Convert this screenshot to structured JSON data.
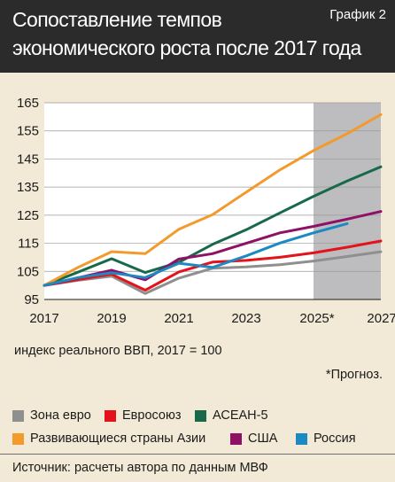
{
  "header": {
    "title_line1": "Сопоставление темпов",
    "title_line2": "экономического роста после 2017 года",
    "badge": "График 2"
  },
  "chart_data": {
    "type": "line",
    "xlim": [
      2017,
      2027
    ],
    "ylim": [
      95,
      165
    ],
    "yticks": [
      95,
      105,
      115,
      125,
      135,
      145,
      155,
      165
    ],
    "xticks": [
      "2017",
      "2019",
      "2021",
      "2023",
      "2025*",
      "2027*"
    ],
    "xtick_values": [
      2017,
      2019,
      2021,
      2023,
      2025,
      2027
    ],
    "forecast_from": 2025,
    "grid": true,
    "series": [
      {
        "name": "Зона евро",
        "color": "#8f8f8f",
        "x": [
          2017,
          2018,
          2019,
          2020,
          2021,
          2022,
          2023,
          2024,
          2025,
          2026,
          2027
        ],
        "y": [
          100,
          101.8,
          103.3,
          97.1,
          102.6,
          106.1,
          106.6,
          107.4,
          108.7,
          110.3,
          112.0
        ]
      },
      {
        "name": "Евросоюз",
        "color": "#e3121b",
        "x": [
          2017,
          2018,
          2019,
          2020,
          2021,
          2022,
          2023,
          2024,
          2025,
          2026,
          2027
        ],
        "y": [
          100,
          102.1,
          104.0,
          98.3,
          104.8,
          108.3,
          108.9,
          110.0,
          111.6,
          113.6,
          115.8
        ]
      },
      {
        "name": "АСЕАН-5",
        "color": "#17694a",
        "x": [
          2017,
          2018,
          2019,
          2020,
          2021,
          2022,
          2023,
          2024,
          2025,
          2026,
          2027
        ],
        "y": [
          100,
          104.7,
          109.5,
          104.6,
          108.2,
          114.6,
          119.8,
          125.8,
          131.7,
          137.2,
          142.2
        ]
      },
      {
        "name": "Развивающиеся страны Азии",
        "color": "#f39a2d",
        "x": [
          2017,
          2018,
          2019,
          2020,
          2021,
          2022,
          2023,
          2024,
          2025,
          2026,
          2027
        ],
        "y": [
          100,
          106.4,
          112.0,
          111.3,
          120.0,
          125.2,
          133.2,
          141.1,
          148.0,
          154.0,
          160.8
        ]
      },
      {
        "name": "США",
        "color": "#8e1166",
        "x": [
          2017,
          2018,
          2019,
          2020,
          2021,
          2022,
          2023,
          2024,
          2025,
          2026,
          2027
        ],
        "y": [
          100,
          102.7,
          105.4,
          102.0,
          109.4,
          111.3,
          115.0,
          118.7,
          121.0,
          123.6,
          126.3
        ]
      },
      {
        "name": "Россия",
        "color": "#1b8ac2",
        "x": [
          2017,
          2018,
          2019,
          2020,
          2021,
          2022,
          2023,
          2024,
          2025,
          2026
        ],
        "y": [
          100,
          102.8,
          104.5,
          102.8,
          107.9,
          106.4,
          110.5,
          115.1,
          118.7,
          122.0
        ]
      }
    ]
  },
  "axis_note": "индекс реального ВВП, 2017 = 100",
  "forecast_note": "*Прогноз.",
  "source": "Источник: расчеты автора по данным МВФ"
}
